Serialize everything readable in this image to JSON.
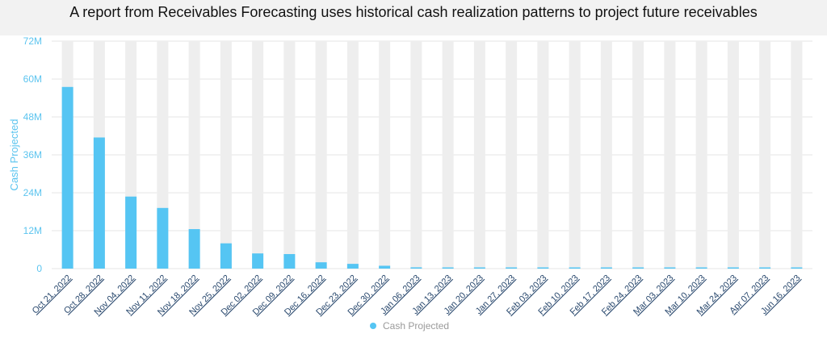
{
  "caption": "A report from Receivables Forecasting uses historical cash realization patterns to project future receivables",
  "chart_data": {
    "type": "bar",
    "categories": [
      "Oct 21, 2022",
      "Oct 28, 2022",
      "Nov 04, 2022",
      "Nov 11, 2022",
      "Nov 18, 2022",
      "Nov 25, 2022",
      "Dec 02, 2022",
      "Dec 09, 2022",
      "Dec 16, 2022",
      "Dec 23, 2022",
      "Dec 30, 2022",
      "Jan 06, 2023",
      "Jan 13, 2023",
      "Jan 20, 2023",
      "Jan 27, 2023",
      "Feb 03, 2023",
      "Feb 10, 2023",
      "Feb 17, 2023",
      "Feb 24, 2023",
      "Mar 03, 2023",
      "Mar 10, 2023",
      "Mar 24, 2023",
      "Apr 07, 2023",
      "Jun 16, 2023"
    ],
    "series": [
      {
        "name": "Cash Projected",
        "values": [
          57.5,
          41.5,
          22.8,
          19.2,
          12.5,
          8.0,
          4.8,
          4.6,
          2.0,
          1.5,
          0.9,
          0.4,
          0.25,
          0.2,
          0.2,
          0.2,
          0.2,
          0.2,
          0.2,
          0.2,
          0.2,
          0.2,
          0.2,
          0.2
        ]
      }
    ],
    "ylabel": "Cash Projected",
    "xlabel": "",
    "ylim": [
      0,
      72
    ],
    "yticks": [
      "0",
      "12M",
      "24M",
      "36M",
      "48M",
      "60M",
      "72M"
    ],
    "ytick_values": [
      0,
      12,
      24,
      36,
      48,
      60,
      72
    ],
    "unit": "M",
    "colors": {
      "bar": "#55c5f3",
      "track": "#eeeeee",
      "grid": "#e6e6e6",
      "axis_text": "#5bc4ef",
      "link": "#2b4a6f"
    },
    "legend_position": "bottom",
    "grid": true
  }
}
